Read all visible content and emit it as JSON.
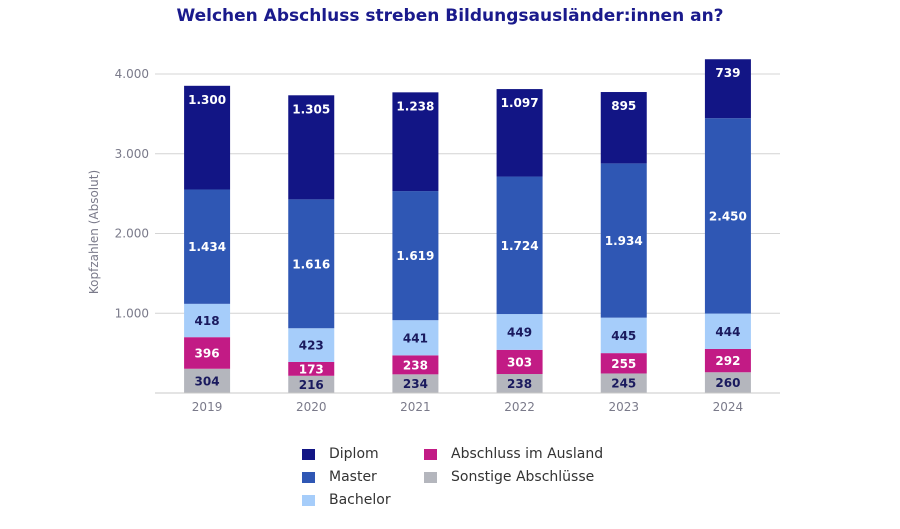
{
  "chart_data": {
    "type": "bar",
    "stacked": true,
    "title": "Welchen Abschluss streben Bildungsausländer:innen an?",
    "ylabel": "Kopfzahlen (Absolut)",
    "xlabel": "",
    "ylim": [
      0,
      4000
    ],
    "yticks": [
      {
        "value": 1000,
        "label": "1.000"
      },
      {
        "value": 2000,
        "label": "2.000"
      },
      {
        "value": 3000,
        "label": "3.000"
      },
      {
        "value": 4000,
        "label": "4.000"
      }
    ],
    "grid": true,
    "legend_position": "bottom",
    "categories": [
      "2019",
      "2020",
      "2021",
      "2022",
      "2023",
      "2024"
    ],
    "series": [
      {
        "name": "Sonstige Abschlüsse",
        "color": "#b4b6bd",
        "label_color": "#1a1a5e",
        "values": [
          304,
          216,
          234,
          238,
          245,
          260
        ],
        "labels": [
          "304",
          "216",
          "234",
          "238",
          "245",
          "260"
        ]
      },
      {
        "name": "Abschluss im Ausland",
        "color": "#c21b85",
        "label_color": "#ffffff",
        "values": [
          396,
          173,
          238,
          303,
          255,
          292
        ],
        "labels": [
          "396",
          "173",
          "238",
          "303",
          "255",
          "292"
        ]
      },
      {
        "name": "Bachelor",
        "color": "#a6cdfa",
        "label_color": "#1a1a5e",
        "values": [
          418,
          423,
          441,
          449,
          445,
          444
        ],
        "labels": [
          "418",
          "423",
          "441",
          "449",
          "445",
          "444"
        ]
      },
      {
        "name": "Master",
        "color": "#2f57b4",
        "label_color": "#ffffff",
        "values": [
          1434,
          1616,
          1619,
          1724,
          1934,
          2450
        ],
        "labels": [
          "1.434",
          "1.616",
          "1.619",
          "1.724",
          "1.934",
          "2.450"
        ]
      },
      {
        "name": "Diplom",
        "color": "#121585",
        "label_color": "#ffffff",
        "values": [
          1300,
          1305,
          1238,
          1097,
          895,
          739
        ],
        "labels": [
          "1.300",
          "1.305",
          "1.238",
          "1.097",
          "895",
          "739"
        ]
      }
    ],
    "legend_order": [
      "Diplom",
      "Master",
      "Bachelor",
      "Abschluss im Ausland",
      "Sonstige Abschlüsse"
    ]
  }
}
